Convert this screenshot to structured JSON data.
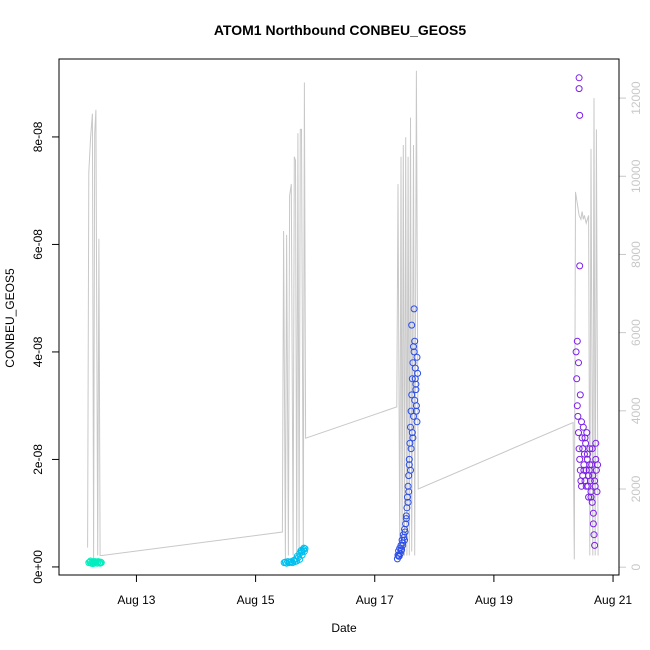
{
  "chart_data": {
    "type": "scatter",
    "title": "ATOM1 Northbound CONBEU_GEOS5",
    "xlabel": "Date",
    "ylabel": "CONBEU_GEOS5",
    "x_range_days": [
      11.7,
      21.1
    ],
    "x_ticks": [
      {
        "label": "Aug 13",
        "value": 13
      },
      {
        "label": "Aug 15",
        "value": 15
      },
      {
        "label": "Aug 17",
        "value": 17
      },
      {
        "label": "Aug 19",
        "value": 19
      },
      {
        "label": "Aug 21",
        "value": 21
      }
    ],
    "y_left": {
      "range": [
        -1.5e-09,
        9.45e-08
      ],
      "ticks": [
        {
          "label": "0e+00",
          "value": 0
        },
        {
          "label": "2e-08",
          "value": 2e-08
        },
        {
          "label": "4e-08",
          "value": 4e-08
        },
        {
          "label": "6e-08",
          "value": 6e-08
        },
        {
          "label": "8e-08",
          "value": 8e-08
        }
      ]
    },
    "y_right": {
      "range": [
        -200,
        13000
      ],
      "color": "#c8c8c8",
      "ticks": [
        {
          "label": "0",
          "value": 0
        },
        {
          "label": "2000",
          "value": 2000
        },
        {
          "label": "4000",
          "value": 4000
        },
        {
          "label": "6000",
          "value": 6000
        },
        {
          "label": "8000",
          "value": 8000
        },
        {
          "label": "10000",
          "value": 10000
        },
        {
          "label": "12000",
          "value": 12000
        }
      ]
    },
    "grid": false,
    "altitude_series": {
      "color": "#c8c8c8",
      "points": [
        [
          12.18,
          500
        ],
        [
          12.2,
          10100
        ],
        [
          12.23,
          11000
        ],
        [
          12.26,
          11600
        ],
        [
          12.28,
          200
        ],
        [
          12.3,
          11100
        ],
        [
          12.32,
          11700
        ],
        [
          12.35,
          300
        ],
        [
          12.37,
          8400
        ],
        [
          12.39,
          300
        ],
        [
          12.42,
          300
        ],
        [
          15.45,
          900
        ],
        [
          15.47,
          8600
        ],
        [
          15.5,
          200
        ],
        [
          15.52,
          8500
        ],
        [
          15.55,
          300
        ],
        [
          15.57,
          9500
        ],
        [
          15.6,
          9800
        ],
        [
          15.63,
          300
        ],
        [
          15.65,
          10500
        ],
        [
          15.67,
          10400
        ],
        [
          15.69,
          300
        ],
        [
          15.71,
          11100
        ],
        [
          15.73,
          400
        ],
        [
          15.75,
          11200
        ],
        [
          15.77,
          11200
        ],
        [
          15.8,
          400
        ],
        [
          15.82,
          12400
        ],
        [
          15.84,
          3300
        ],
        [
          17.37,
          4100
        ],
        [
          17.39,
          9800
        ],
        [
          17.42,
          200
        ],
        [
          17.44,
          10500
        ],
        [
          17.46,
          300
        ],
        [
          17.48,
          10800
        ],
        [
          17.5,
          300
        ],
        [
          17.52,
          11000
        ],
        [
          17.54,
          300
        ],
        [
          17.56,
          10500
        ],
        [
          17.58,
          300
        ],
        [
          17.6,
          11500
        ],
        [
          17.62,
          400
        ],
        [
          17.65,
          10800
        ],
        [
          17.67,
          300
        ],
        [
          17.7,
          12700
        ],
        [
          17.73,
          2000
        ],
        [
          20.33,
          3700
        ],
        [
          20.35,
          200
        ],
        [
          20.37,
          9600
        ],
        [
          20.39,
          9400
        ],
        [
          20.41,
          9200
        ],
        [
          20.43,
          9000
        ],
        [
          20.46,
          8900
        ],
        [
          20.48,
          9100
        ],
        [
          20.5,
          8900
        ],
        [
          20.52,
          9000
        ],
        [
          20.55,
          8800
        ],
        [
          20.57,
          8900
        ],
        [
          20.59,
          9000
        ],
        [
          20.61,
          300
        ],
        [
          20.63,
          10700
        ],
        [
          20.66,
          300
        ],
        [
          20.68,
          12000
        ],
        [
          20.7,
          300
        ],
        [
          20.72,
          11200
        ],
        [
          20.75,
          300
        ]
      ]
    },
    "series": [
      {
        "color": "#00eebf",
        "x": [
          12.2,
          12.22,
          12.24,
          12.26,
          12.28,
          12.3,
          12.32,
          12.34,
          12.36,
          12.38,
          12.4,
          12.41,
          12.23,
          12.27,
          12.31,
          12.35,
          12.39
        ],
        "y": [
          8e-10,
          9e-10,
          7e-10,
          9e-10,
          1e-09,
          8e-10,
          9e-10,
          7e-10,
          1e-09,
          8e-10,
          9e-10,
          8e-10,
          1.1e-09,
          6e-10,
          1e-09,
          9e-10,
          7e-10
        ]
      },
      {
        "color": "#00bfee",
        "x": [
          15.48,
          15.5,
          15.52,
          15.54,
          15.56,
          15.58,
          15.6,
          15.62,
          15.64,
          15.66,
          15.68,
          15.7,
          15.72,
          15.74,
          15.76,
          15.78,
          15.8,
          15.82,
          15.83,
          15.74,
          15.78,
          15.81,
          15.69,
          15.77
        ],
        "y": [
          8e-10,
          9e-10,
          7e-10,
          1e-09,
          8e-10,
          9e-10,
          1e-09,
          8e-10,
          1.2e-09,
          1e-09,
          1.5e-09,
          2e-09,
          1.8e-09,
          2.5e-09,
          3e-09,
          2.8e-09,
          3.2e-09,
          2.9e-09,
          3.4e-09,
          1.4e-09,
          2.2e-09,
          3.5e-09,
          1.1e-09,
          3.1e-09
        ]
      },
      {
        "color": "#2a4de8",
        "x": [
          17.38,
          17.39,
          17.4,
          17.41,
          17.42,
          17.43,
          17.44,
          17.45,
          17.46,
          17.47,
          17.48,
          17.49,
          17.5,
          17.51,
          17.52,
          17.53,
          17.54,
          17.55,
          17.56,
          17.57,
          17.58,
          17.59,
          17.6,
          17.61,
          17.62,
          17.63,
          17.64,
          17.65,
          17.66,
          17.67,
          17.68,
          17.69,
          17.7,
          17.71,
          17.72,
          17.4,
          17.44,
          17.47,
          17.5,
          17.53,
          17.56,
          17.58,
          17.61,
          17.63,
          17.65,
          17.67,
          17.69,
          17.71,
          17.62,
          17.66,
          17.68,
          17.64,
          17.57,
          17.6,
          17.7
        ],
        "y": [
          1.5e-09,
          2.2e-09,
          3e-09,
          2e-09,
          3.5e-09,
          2.5e-09,
          4e-09,
          3.2e-09,
          5e-09,
          4.5e-09,
          6e-09,
          5.5e-09,
          7e-09,
          6.5e-09,
          8e-09,
          9e-09,
          1.1e-08,
          1.3e-08,
          1.5e-08,
          1.7e-08,
          2e-08,
          2.3e-08,
          2.6e-08,
          2.9e-08,
          3.2e-08,
          3.5e-08,
          3.8e-08,
          4.1e-08,
          4.8e-08,
          4.2e-08,
          3.7e-08,
          3.3e-08,
          3e-08,
          2.7e-08,
          3.6e-08,
          2e-09,
          3e-09,
          4e-09,
          5e-09,
          9.5e-09,
          1.2e-08,
          1.9e-08,
          2.2e-08,
          2.5e-08,
          2.8e-08,
          3.1e-08,
          3.4e-08,
          3.9e-08,
          4.5e-08,
          4e-08,
          3.5e-08,
          2.4e-08,
          1.4e-08,
          1.8e-08,
          2.9e-08
        ]
      },
      {
        "color": "#7a1fe8",
        "x": [
          20.38,
          20.39,
          20.4,
          20.41,
          20.42,
          20.43,
          20.44,
          20.45,
          20.46,
          20.47,
          20.48,
          20.49,
          20.5,
          20.51,
          20.52,
          20.53,
          20.54,
          20.55,
          20.56,
          20.57,
          20.58,
          20.59,
          20.6,
          20.61,
          20.62,
          20.63,
          20.64,
          20.65,
          20.66,
          20.67,
          20.68,
          20.69,
          20.7,
          20.71,
          20.72,
          20.73,
          20.74,
          20.43,
          20.43,
          20.44,
          20.44,
          20.4,
          20.42,
          20.45,
          20.47,
          20.49,
          20.51,
          20.53,
          20.55,
          20.57,
          20.59,
          20.61,
          20.63,
          20.65,
          20.67,
          20.69,
          20.71
        ],
        "y": [
          4e-08,
          3.5e-08,
          3e-08,
          2.8e-08,
          2.5e-08,
          2.2e-08,
          2e-08,
          1.8e-08,
          1.6e-08,
          1.5e-08,
          2.4e-08,
          1.7e-08,
          2.6e-08,
          1.9e-08,
          2.1e-08,
          1.6e-08,
          2.3e-08,
          1.8e-08,
          2.5e-08,
          2e-08,
          1.5e-08,
          1.3e-08,
          1.8e-08,
          2.2e-08,
          1.6e-08,
          1.4e-08,
          1.9e-08,
          1.2e-08,
          1.7e-08,
          1e-08,
          6e-09,
          4e-09,
          1.5e-08,
          2.3e-08,
          1.8e-08,
          1.4e-08,
          1.9e-08,
          9.1e-08,
          8.9e-08,
          8.4e-08,
          5.6e-08,
          4.2e-08,
          3.8e-08,
          3.2e-08,
          2.7e-08,
          2.2e-08,
          1.8e-08,
          2.4e-08,
          1.5e-08,
          2.1e-08,
          1.7e-08,
          1.9e-08,
          1.3e-08,
          2.2e-08,
          8e-09,
          1.6e-08,
          2e-08
        ]
      }
    ]
  }
}
